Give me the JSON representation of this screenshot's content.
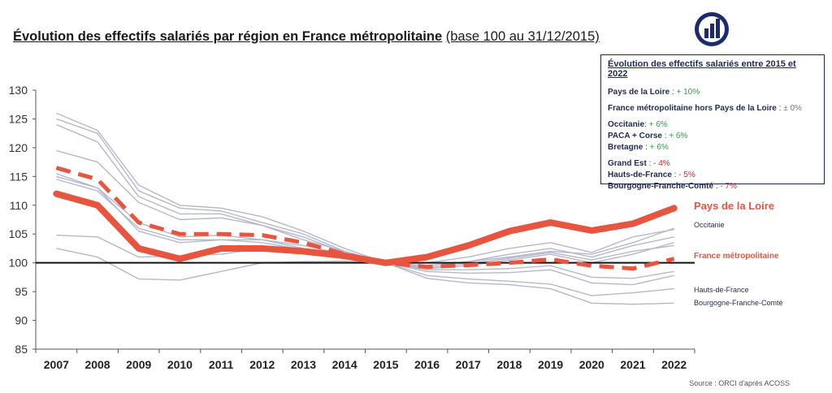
{
  "title": {
    "main": "Évolution des effectifs salariés par région en France métropolitaine",
    "sub": "(base 100 au 31/12/2015)"
  },
  "summary_box": {
    "title": "Évolution des effectifs salariés entre 2015 et 2022",
    "groups": [
      [
        {
          "name": "Pays de la Loire",
          "sep": " : ",
          "value": "+ 10%",
          "color": "#2ea04a"
        }
      ],
      [
        {
          "name": "France métropolitaine hors Pays de la Loire",
          "sep": " : ",
          "value": "± 0%",
          "color": "#777777"
        }
      ],
      [
        {
          "name": "Occitanie",
          "sep": ": ",
          "value": "+ 6%",
          "color": "#2ea04a"
        },
        {
          "name": "PACA + Corse",
          "sep": " : ",
          "value": "+ 6%",
          "color": "#2ea04a"
        },
        {
          "name": "Bretagne",
          "sep": " : ",
          "value": "+ 6%",
          "color": "#2ea04a"
        }
      ],
      [
        {
          "name": "Grand Est",
          "sep": " : ",
          "value": "- 4%",
          "color": "#d9262b"
        },
        {
          "name": "Hauts-de-France",
          "sep": " : ",
          "value": "- 5%",
          "color": "#d9262b"
        },
        {
          "name": "Bourgogne-Franche-Comté",
          "sep": " : ",
          "value": "- 7%",
          "color": "#d9262b"
        }
      ]
    ]
  },
  "source": "Source : ORCI d'après ACOSS",
  "colors": {
    "accent": "#e8553f",
    "region_line": "#b5b8cc",
    "baseline": "#111111",
    "box_border": "#1e2a55"
  },
  "chart_data": {
    "type": "line",
    "x": [
      2007,
      2008,
      2009,
      2010,
      2011,
      2012,
      2013,
      2014,
      2015,
      2016,
      2017,
      2018,
      2019,
      2020,
      2021,
      2022
    ],
    "ylim": [
      85,
      130
    ],
    "yticks": [
      85,
      90,
      95,
      100,
      105,
      110,
      115,
      120,
      125,
      130
    ],
    "baseline": 100,
    "grid": false,
    "highlight_series": [
      {
        "name": "Pays de la Loire",
        "style": "thick-solid",
        "values": [
          112,
          110,
          102.5,
          100.7,
          102.5,
          102.5,
          102,
          101.2,
          100,
          101,
          103,
          105.5,
          107,
          105.6,
          106.8,
          109.5
        ]
      },
      {
        "name": "France métropolitaine",
        "style": "thick-dashed",
        "values": [
          116.5,
          114.5,
          107,
          105,
          105,
          104.8,
          103.5,
          101.5,
          100,
          99.3,
          99.6,
          100,
          100.6,
          99.5,
          99,
          100.7
        ]
      }
    ],
    "regional_series": [
      {
        "name": "Occitanie",
        "values": [
          115,
          113,
          105.5,
          103.5,
          104,
          104,
          103,
          101.5,
          100,
          99.5,
          100.2,
          101,
          102,
          101.5,
          103.5,
          106
        ]
      },
      {
        "name": "",
        "values": [
          119.5,
          117.5,
          110.5,
          107.5,
          107.8,
          106.5,
          104,
          102,
          100,
          100,
          101,
          102.5,
          103.5,
          101.8,
          104.5,
          105.8
        ]
      },
      {
        "name": "",
        "values": [
          126,
          123,
          113.5,
          110,
          109.5,
          108,
          105.5,
          102.5,
          100,
          99.5,
          100.2,
          101.5,
          102.5,
          101,
          103,
          104.5
        ]
      },
      {
        "name": "",
        "values": [
          125,
          122.5,
          112.5,
          109.5,
          109,
          107,
          105,
          102,
          100,
          99,
          99.5,
          100.5,
          101.5,
          100,
          101.5,
          103.5
        ]
      },
      {
        "name": "",
        "values": [
          124,
          121,
          111.5,
          108.5,
          108.5,
          106.5,
          104.5,
          101.8,
          100,
          99.2,
          99.8,
          100.8,
          101.8,
          100.5,
          102,
          103
        ]
      },
      {
        "name": "",
        "values": [
          115.5,
          113,
          107,
          104.5,
          104.8,
          104,
          102.5,
          101.3,
          100,
          98.8,
          98.8,
          99,
          99.5,
          97.5,
          97.3,
          98.5
        ]
      },
      {
        "name": "",
        "values": [
          114.5,
          112.5,
          106,
          104,
          104,
          103.5,
          102.3,
          101.1,
          100,
          98.5,
          98.2,
          98.3,
          98.8,
          96.5,
          96.2,
          97.8
        ]
      },
      {
        "name": "Hauts-de-France",
        "values": [
          104.8,
          104.5,
          101,
          101.2,
          101.5,
          102.5,
          101.8,
          101,
          100,
          97.8,
          97.2,
          96.8,
          96.3,
          94.3,
          94.8,
          95.5
        ]
      },
      {
        "name": "Bourgogne-Franche-Comté",
        "values": [
          102.5,
          101,
          97.2,
          97,
          98.5,
          100,
          100.2,
          100.3,
          100,
          97.3,
          96.5,
          96.2,
          95.5,
          93,
          92.8,
          93
        ]
      }
    ],
    "series_labels": [
      "Pays de la Loire",
      "Occitanie",
      "France métropolitaine",
      "Hauts-de-France",
      "Bourgogne-Franche-Comté"
    ]
  }
}
